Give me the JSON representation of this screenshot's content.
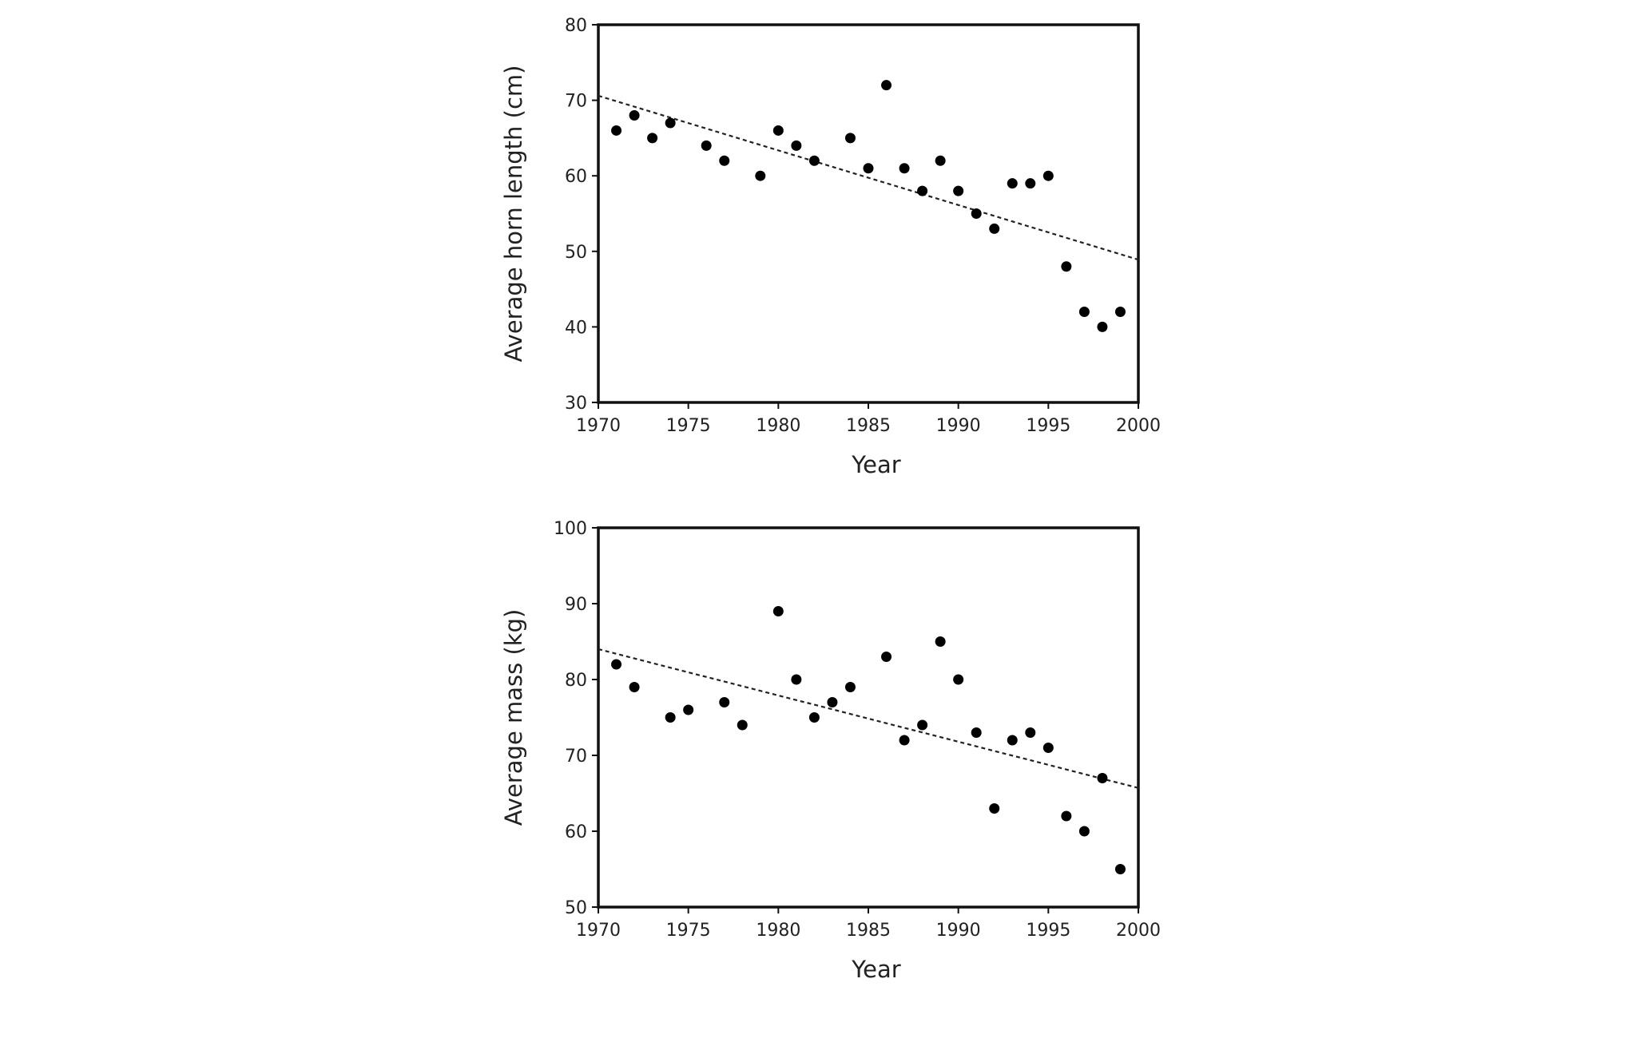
{
  "chart_data": [
    {
      "type": "scatter",
      "title": "",
      "xlabel": "Year",
      "ylabel": "Average horn length (cm)",
      "xlim": [
        1970,
        2000
      ],
      "ylim": [
        30,
        80
      ],
      "x_ticks": [
        "1970",
        "1975",
        "1980",
        "1985",
        "1990",
        "1995",
        "2000"
      ],
      "y_ticks": [
        "30",
        "40",
        "50",
        "60",
        "70",
        "80"
      ],
      "grid": false,
      "legend": "none",
      "series": [
        {
          "x": [
            1971,
            1972,
            1973,
            1974,
            1976,
            1977,
            1979,
            1980,
            1981,
            1982,
            1984,
            1985,
            1986,
            1987,
            1988,
            1989,
            1990,
            1991,
            1992,
            1993,
            1994,
            1995,
            1996,
            1997,
            1998,
            1999
          ],
          "y": [
            66,
            68,
            65,
            67,
            64,
            62,
            60,
            66,
            64,
            62,
            65,
            61,
            72,
            61,
            58,
            62,
            58,
            55,
            53,
            59,
            59,
            60,
            48,
            42,
            40,
            42
          ]
        }
      ],
      "trendline": {
        "style": "dotted",
        "x": [
          1970,
          2000
        ],
        "y": [
          70.6,
          48.9
        ]
      }
    },
    {
      "type": "scatter",
      "title": "",
      "xlabel": "Year",
      "ylabel": "Average mass (kg)",
      "xlim": [
        1970,
        2000
      ],
      "ylim": [
        50,
        100
      ],
      "x_ticks": [
        "1970",
        "1975",
        "1980",
        "1985",
        "1990",
        "1995",
        "2000"
      ],
      "y_ticks": [
        "50",
        "60",
        "70",
        "80",
        "90",
        "100"
      ],
      "grid": false,
      "legend": "none",
      "series": [
        {
          "x": [
            1971,
            1972,
            1974,
            1975,
            1977,
            1978,
            1980,
            1981,
            1982,
            1983,
            1984,
            1986,
            1987,
            1988,
            1989,
            1990,
            1991,
            1992,
            1993,
            1994,
            1995,
            1996,
            1997,
            1998,
            1999
          ],
          "y": [
            82,
            79,
            75,
            76,
            77,
            74,
            89,
            80,
            75,
            77,
            79,
            83,
            72,
            74,
            85,
            80,
            73,
            63,
            72,
            73,
            71,
            62,
            60,
            67,
            55
          ]
        }
      ],
      "trendline": {
        "style": "dotted",
        "x": [
          1970,
          2000
        ],
        "y": [
          84.0,
          65.7
        ]
      }
    }
  ]
}
